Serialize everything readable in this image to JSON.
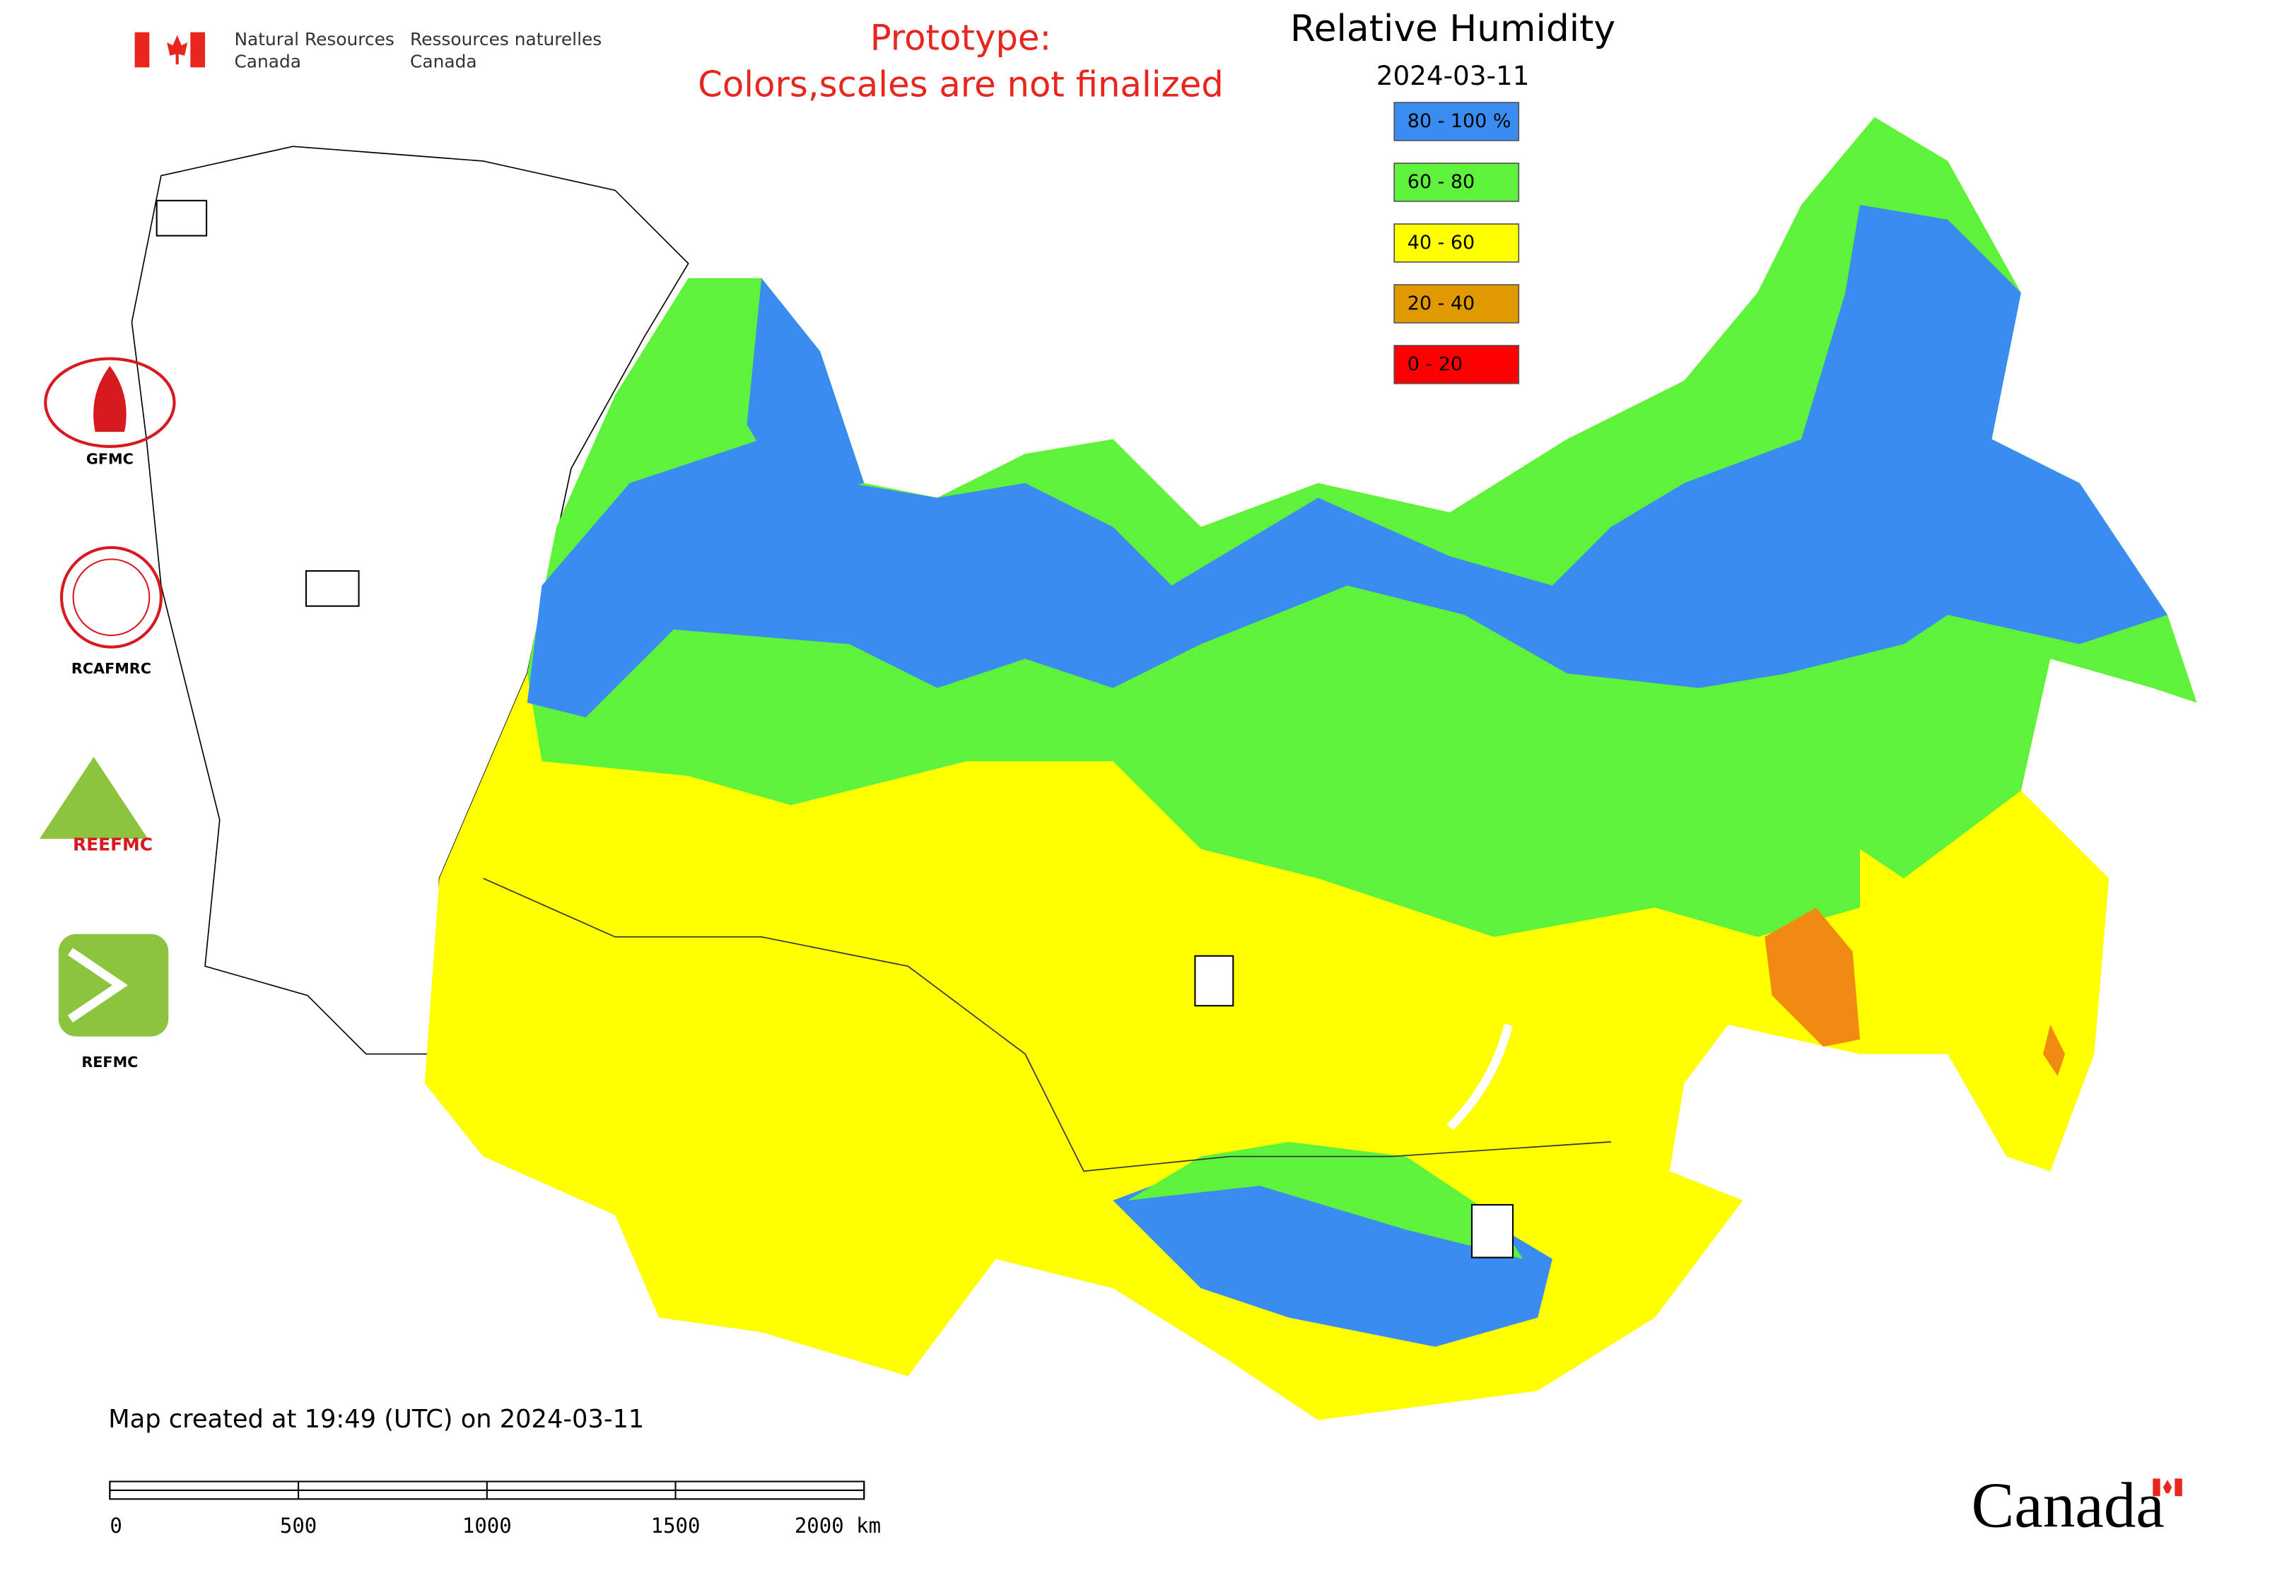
{
  "header": {
    "org_en_line1": "Natural Resources",
    "org_en_line2": "Canada",
    "org_fr_line1": "Ressources naturelles",
    "org_fr_line2": "Canada"
  },
  "notice": {
    "line1": "Prototype:",
    "line2": "Colors,scales are not finalized"
  },
  "legend": {
    "title": "Relative Humidity",
    "date": "2024-03-11",
    "items": [
      {
        "label": "80 - 100 %",
        "color": "#3a8cf0"
      },
      {
        "label": "60 - 80",
        "color": "#5ef23c"
      },
      {
        "label": "40 - 60",
        "color": "#ffff00"
      },
      {
        "label": "20 - 40",
        "color": "#e09a00"
      },
      {
        "label": "0 - 20",
        "color": "#ff0000"
      }
    ]
  },
  "logos": [
    "GFMC",
    "RCAFMRC",
    "REEFMC",
    "REFMC"
  ],
  "footer": {
    "created": "Map created at 19:49 (UTC) on 2024-03-11",
    "scale_labels": [
      "0",
      "500",
      "1000",
      "1500",
      "2000 km"
    ],
    "wordmark": "Canada"
  }
}
